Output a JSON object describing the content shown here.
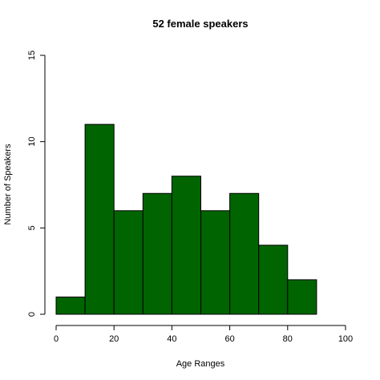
{
  "chart_data": {
    "type": "bar",
    "title": "52 female speakers",
    "xlabel": "Age Ranges",
    "ylabel": "Number of Speakers",
    "bins": [
      {
        "from": 0,
        "to": 10,
        "count": 1
      },
      {
        "from": 10,
        "to": 20,
        "count": 11
      },
      {
        "from": 20,
        "to": 30,
        "count": 6
      },
      {
        "from": 30,
        "to": 40,
        "count": 7
      },
      {
        "from": 40,
        "to": 50,
        "count": 8
      },
      {
        "from": 50,
        "to": 60,
        "count": 6
      },
      {
        "from": 60,
        "to": 70,
        "count": 7
      },
      {
        "from": 70,
        "to": 80,
        "count": 4
      },
      {
        "from": 80,
        "to": 90,
        "count": 2
      }
    ],
    "xlim": [
      0,
      100
    ],
    "ylim": [
      0,
      15
    ],
    "xticks": [
      "0",
      "20",
      "40",
      "60",
      "80",
      "100"
    ],
    "yticks": [
      "0",
      "5",
      "10",
      "15"
    ],
    "bar_color": "#006400",
    "grid": false
  }
}
